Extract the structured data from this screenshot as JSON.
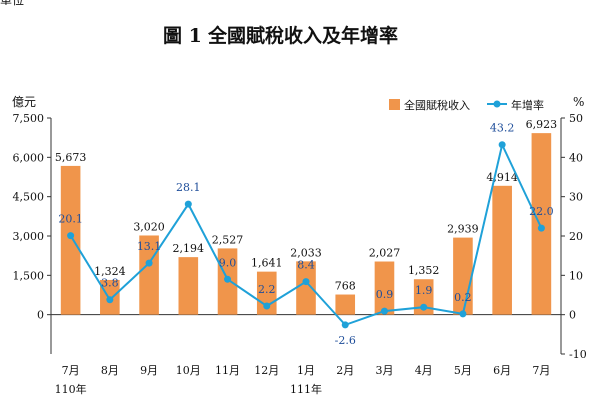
{
  "page": {
    "title_number": "圖 1",
    "title_text": "全國賦稅收入及年增率",
    "fragment_text": "單位"
  },
  "colors": {
    "bar": "#f0954b",
    "line": "#1fa1d8",
    "rate_label": "#1f4e9a"
  },
  "chart_data": {
    "type": "bar",
    "title": "圖 1　全國賦稅收入及年增率",
    "categories": [
      "7月",
      "8月",
      "9月",
      "10月",
      "11月",
      "12月",
      "1月",
      "2月",
      "3月",
      "4月",
      "5月",
      "6月",
      "7月"
    ],
    "year_labels": [
      {
        "index": 0,
        "text": "110年"
      },
      {
        "index": 6,
        "text": "111年"
      }
    ],
    "series": [
      {
        "name": "全國賦稅收入",
        "type": "bar",
        "axis": "left",
        "values": [
          5673,
          1324,
          3020,
          2194,
          2527,
          1641,
          2033,
          768,
          2027,
          1352,
          2939,
          4914,
          6923
        ],
        "labels": [
          "5,673",
          "1,324",
          "3,020",
          "2,194",
          "2,527",
          "1,641",
          "2,033",
          "768",
          "2,027",
          "1,352",
          "2,939",
          "4,914",
          "6,923"
        ]
      },
      {
        "name": "年增率",
        "type": "line",
        "axis": "right",
        "values": [
          20.1,
          3.8,
          13.1,
          28.1,
          9.0,
          2.2,
          8.4,
          -2.6,
          0.9,
          1.9,
          0.2,
          43.2,
          22.0
        ],
        "labels": [
          "20.1",
          "3.8",
          "13.1",
          "28.1",
          "9.0",
          "2.2",
          "8.4",
          "-2.6",
          "0.9",
          "1.9",
          "0.2",
          "43.2",
          "22.0"
        ]
      }
    ],
    "y_left": {
      "unit": "億元",
      "ylim": [
        -1500,
        7500
      ],
      "ticks": [
        0,
        1500,
        3000,
        4500,
        6000,
        7500
      ],
      "tick_labels": [
        "0",
        "1,500",
        "3,000",
        "4,500",
        "6,000",
        "7,500"
      ]
    },
    "y_right": {
      "unit": "%",
      "ylim": [
        -10,
        50
      ],
      "ticks": [
        -10,
        0,
        10,
        20,
        30,
        40,
        50
      ],
      "tick_labels": [
        "-10",
        "0",
        "10",
        "20",
        "30",
        "40",
        "50"
      ]
    },
    "legend": {
      "position": "top-right"
    },
    "grid": false
  }
}
